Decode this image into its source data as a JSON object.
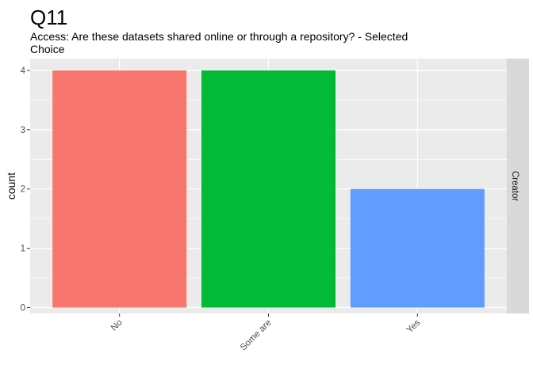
{
  "chart_data": {
    "type": "bar",
    "title": "Q11",
    "subtitle_lines": [
      "Access: Are these datasets shared online or through a repository? - Selected",
      "Choice"
    ],
    "xlabel": "",
    "ylabel": "count",
    "categories": [
      "No",
      "Some are",
      "Yes"
    ],
    "values": [
      4,
      4,
      2
    ],
    "colors": [
      "#F8766D",
      "#00BA38",
      "#619CFF"
    ],
    "ylim": [
      -0.1,
      4.2
    ],
    "yticks": [
      0,
      1,
      2,
      3,
      4
    ],
    "facet_label": "Creator",
    "panel_background": "#EBEBEB",
    "strip_background": "#D9D9D9",
    "grid": true,
    "legend": "none"
  }
}
